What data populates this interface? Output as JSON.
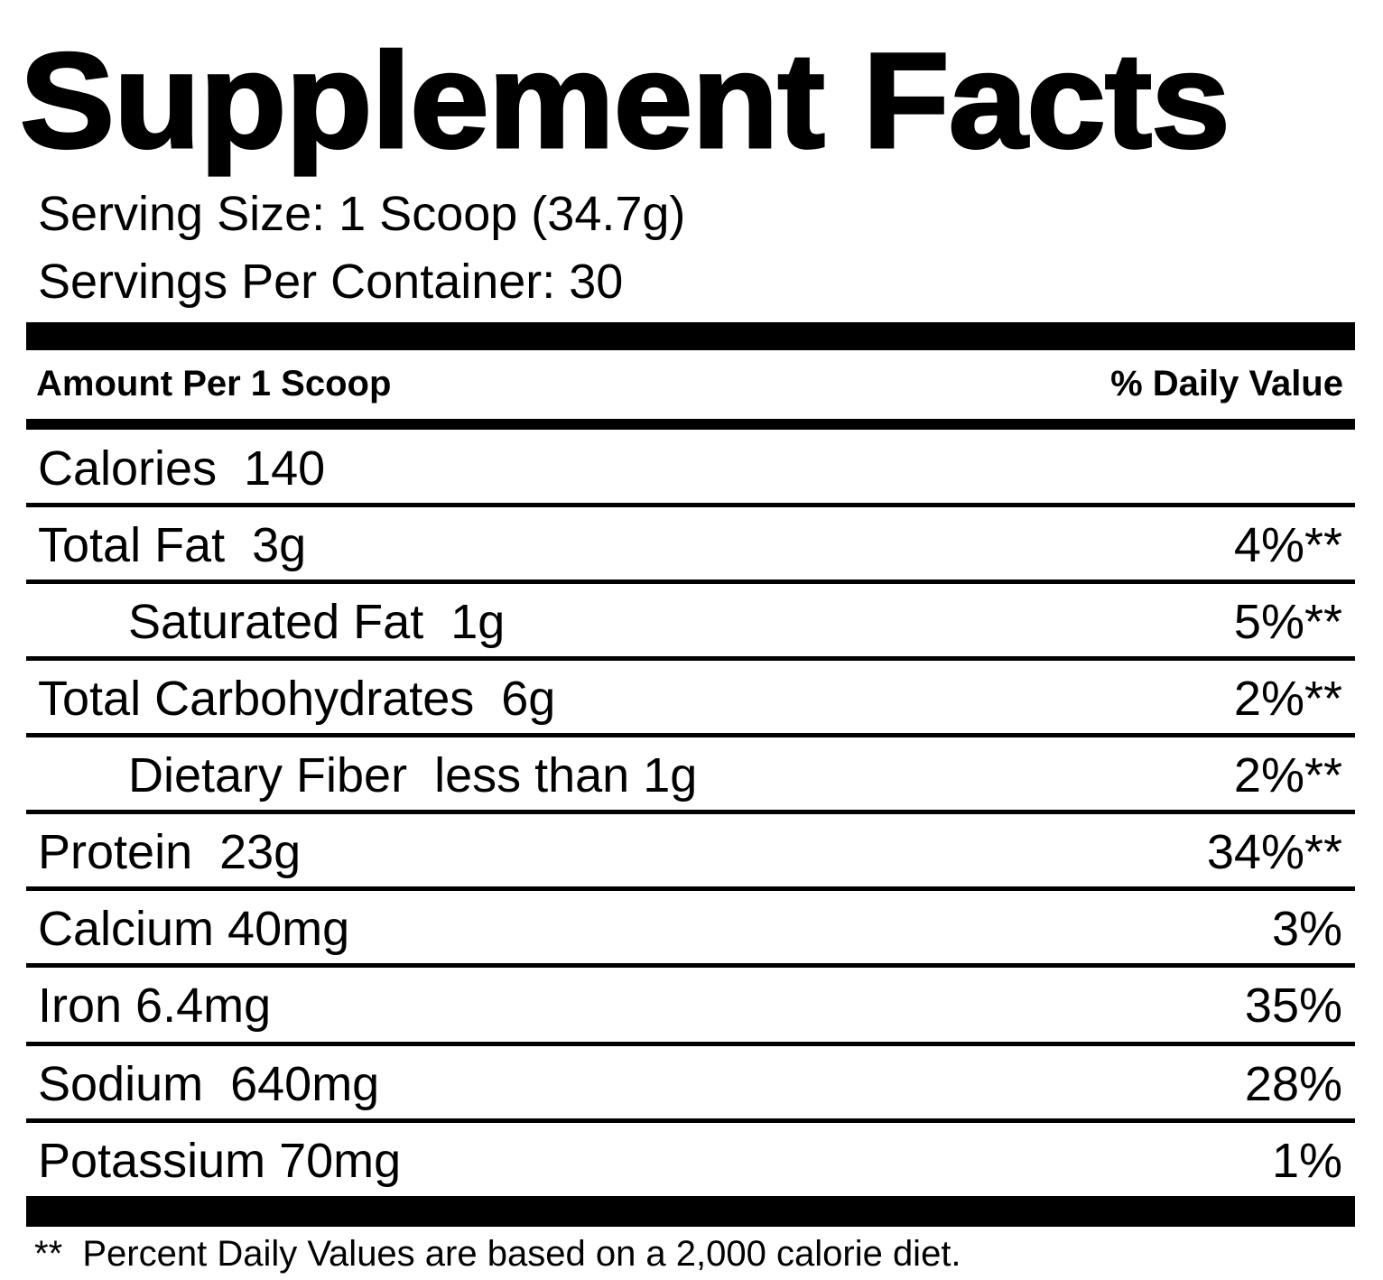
{
  "title": "Supplement Facts",
  "serving_size": "Serving Size: 1 Scoop (34.7g)",
  "servings_per_container": "Servings Per Container: 30",
  "header": {
    "amount_label": "Amount Per 1 Scoop",
    "dv_label": "% Daily Value"
  },
  "rows": [
    {
      "label": "Calories  140",
      "pct": ""
    },
    {
      "label": "Total Fat  3g",
      "pct": "4%**"
    },
    {
      "label": "Saturated Fat  1g",
      "pct": "5%**"
    },
    {
      "label": "Total Carbohydrates  6g",
      "pct": "2%**"
    },
    {
      "label": "Dietary Fiber  less than 1g",
      "pct": "2%**"
    },
    {
      "label": "Protein  23g",
      "pct": "34%**"
    },
    {
      "label": "Calcium 40mg",
      "pct": "3%"
    },
    {
      "label": "Iron 6.4mg",
      "pct": "35%"
    },
    {
      "label": "Sodium  640mg",
      "pct": "28%"
    },
    {
      "label": "Potassium 70mg",
      "pct": "1%"
    }
  ],
  "footnote": "**  Percent Daily Values are based on a 2,000 calorie diet."
}
